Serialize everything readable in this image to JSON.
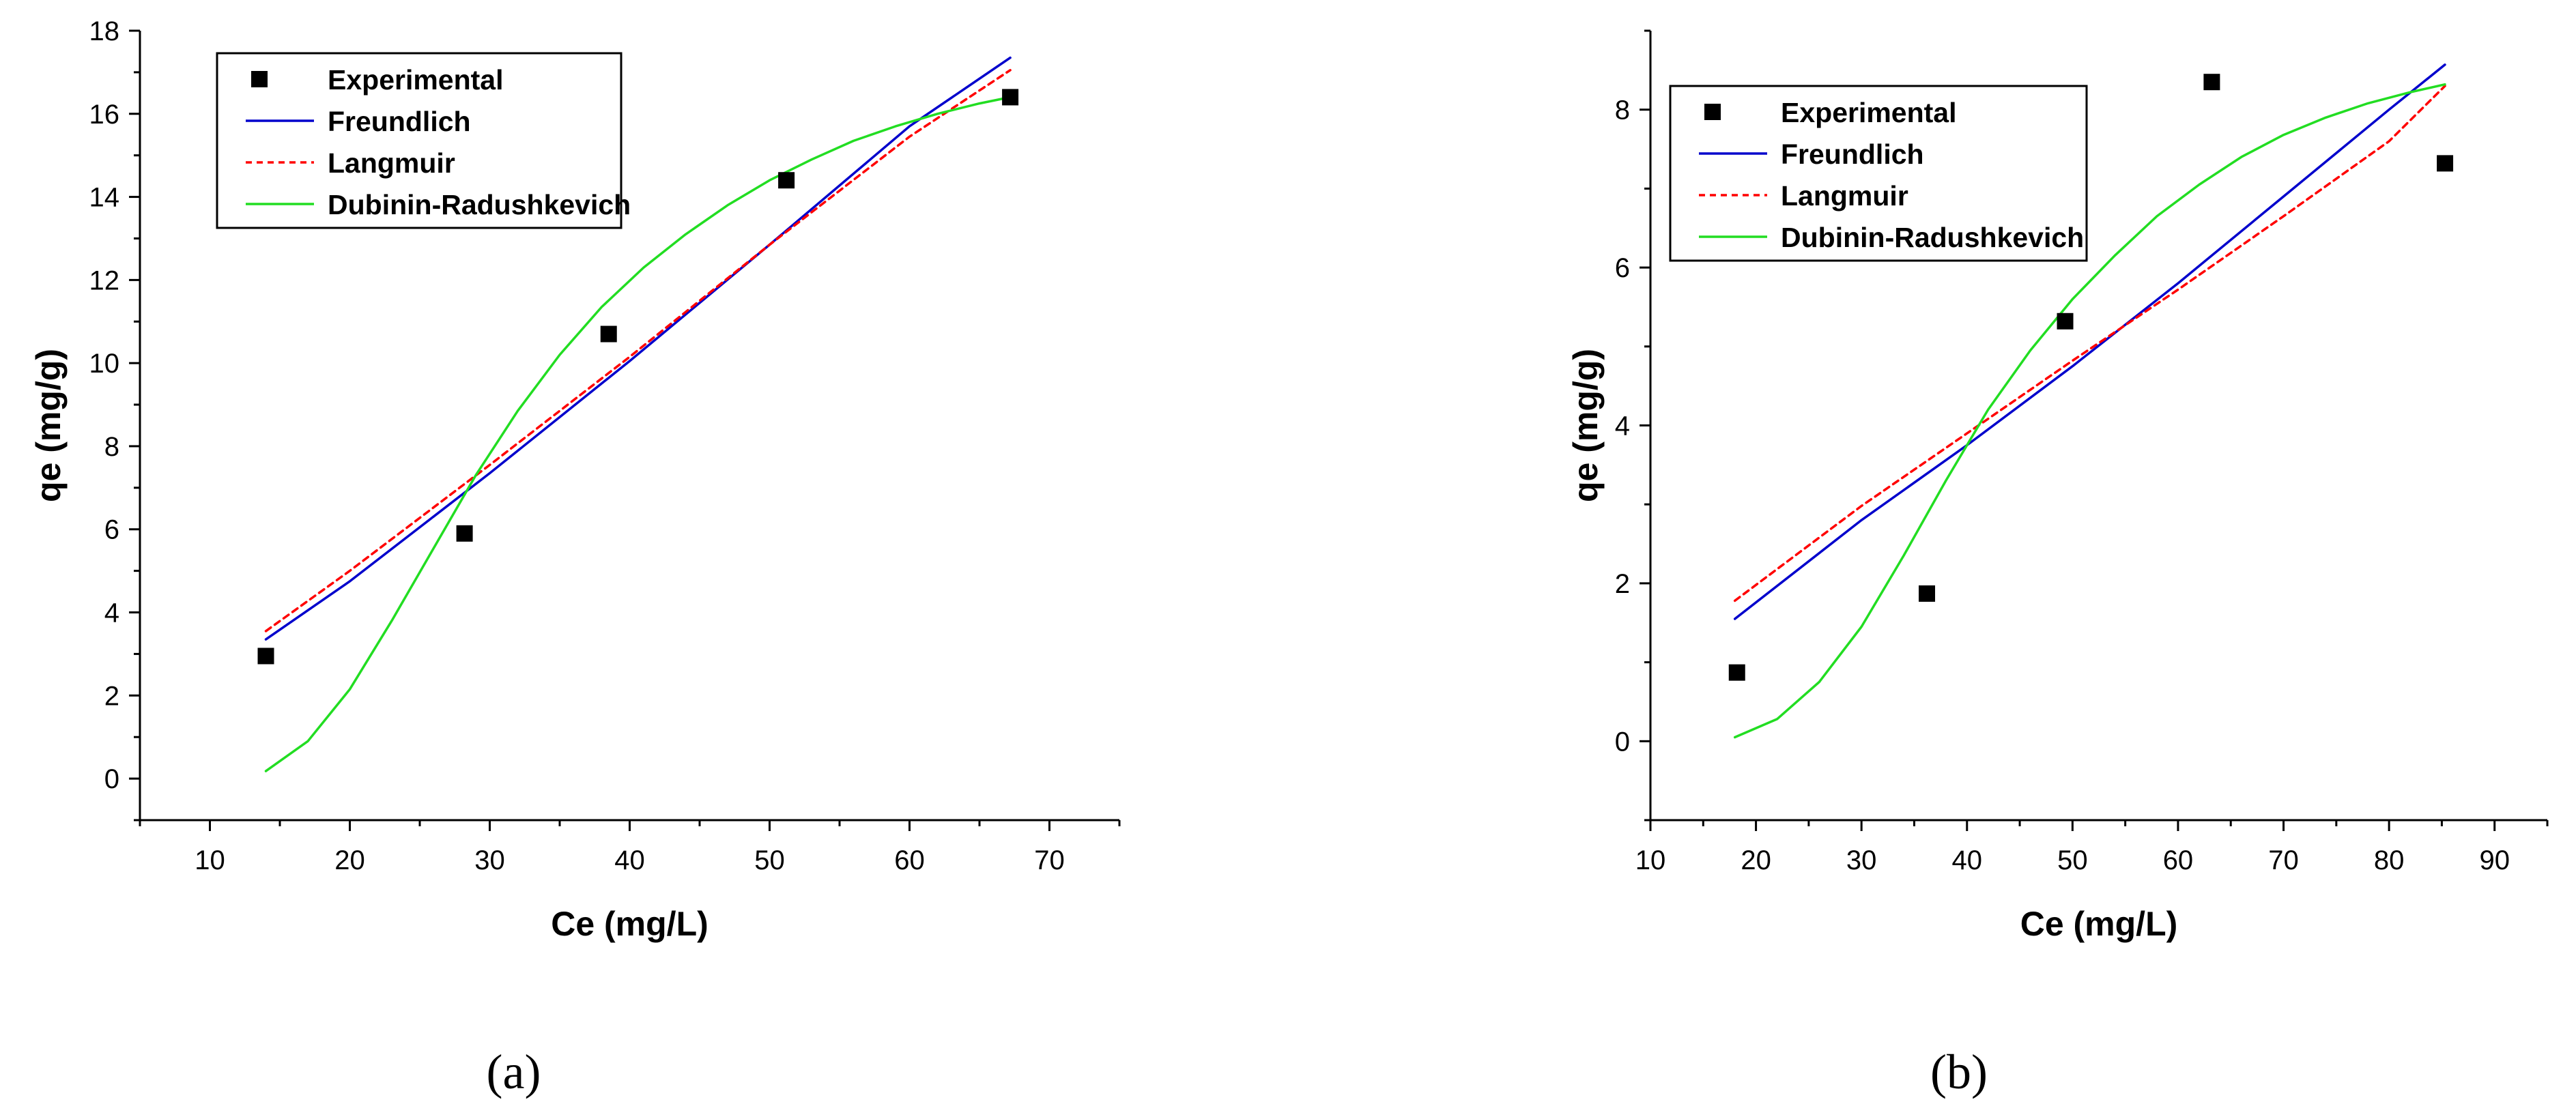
{
  "chart_data": [
    {
      "type": "scatter",
      "panel_label": "(a)",
      "xlabel": "Ce (mg/L)",
      "ylabel": "qe (mg/g)",
      "xlim": [
        5,
        75
      ],
      "ylim": [
        -1,
        18
      ],
      "xticks": [
        "10",
        "20",
        "30",
        "40",
        "50",
        "60",
        "70"
      ],
      "yticks": [
        "0",
        "2",
        "4",
        "6",
        "8",
        "10",
        "12",
        "14",
        "16",
        "18"
      ],
      "legend_position": "top-left",
      "series": [
        {
          "name": "Experimental",
          "kind": "points",
          "color": "#000000",
          "x": [
            14.0,
            28.2,
            38.5,
            51.2,
            67.2
          ],
          "y": [
            2.95,
            5.9,
            10.7,
            14.4,
            16.4
          ]
        },
        {
          "name": "Freundlich",
          "kind": "line",
          "style": "solid",
          "color": "#0000cc",
          "x": [
            14,
            20,
            30,
            40,
            50,
            60,
            67.2
          ],
          "y": [
            3.35,
            4.75,
            7.35,
            10.05,
            12.85,
            15.7,
            17.35
          ]
        },
        {
          "name": "Langmuir",
          "kind": "line",
          "style": "dashed",
          "color": "#ff0000",
          "x": [
            14,
            20,
            30,
            40,
            50,
            60,
            67.2
          ],
          "y": [
            3.55,
            5.0,
            7.55,
            10.15,
            12.85,
            15.45,
            17.05
          ]
        },
        {
          "name": "Dubinin-Radushkevich",
          "kind": "line",
          "style": "solid",
          "color": "#22dd22",
          "x": [
            14,
            17,
            20,
            23,
            26,
            29,
            32,
            35,
            38,
            41,
            44,
            47,
            50,
            53,
            56,
            59,
            62,
            65,
            67.2
          ],
          "y": [
            0.18,
            0.9,
            2.15,
            3.8,
            5.55,
            7.3,
            8.85,
            10.2,
            11.35,
            12.3,
            13.1,
            13.8,
            14.4,
            14.9,
            15.35,
            15.7,
            16.0,
            16.25,
            16.4
          ]
        }
      ]
    },
    {
      "type": "scatter",
      "panel_label": "(b)",
      "xlabel": "Ce (mg/L)",
      "ylabel": "qe (mg/g)",
      "xlim": [
        10,
        95
      ],
      "ylim": [
        -1,
        9
      ],
      "xticks": [
        "10",
        "20",
        "30",
        "40",
        "50",
        "60",
        "70",
        "80",
        "90"
      ],
      "yticks": [
        "0",
        "2",
        "4",
        "6",
        "8"
      ],
      "legend_position": "top-left",
      "series": [
        {
          "name": "Experimental",
          "kind": "points",
          "color": "#000000",
          "x": [
            18.2,
            36.2,
            49.3,
            63.2,
            85.3
          ],
          "y": [
            0.87,
            1.87,
            5.32,
            8.35,
            7.32
          ]
        },
        {
          "name": "Freundlich",
          "kind": "line",
          "style": "solid",
          "color": "#0000cc",
          "x": [
            18,
            30,
            40,
            50,
            60,
            70,
            80,
            85.3
          ],
          "y": [
            1.55,
            2.8,
            3.75,
            4.75,
            5.8,
            6.9,
            8.0,
            8.57
          ]
        },
        {
          "name": "Langmuir",
          "kind": "line",
          "style": "dashed",
          "color": "#ff0000",
          "x": [
            18,
            30,
            40,
            50,
            60,
            70,
            80,
            85.3
          ],
          "y": [
            1.78,
            2.98,
            3.9,
            4.82,
            5.72,
            6.65,
            7.6,
            8.3
          ]
        },
        {
          "name": "Dubinin-Radushkevich",
          "kind": "line",
          "style": "solid",
          "color": "#22dd22",
          "x": [
            18,
            22,
            26,
            30,
            34,
            38,
            42,
            46,
            50,
            54,
            58,
            62,
            66,
            70,
            74,
            78,
            82,
            85.3
          ],
          "y": [
            0.05,
            0.28,
            0.75,
            1.45,
            2.35,
            3.3,
            4.2,
            4.95,
            5.6,
            6.15,
            6.65,
            7.05,
            7.4,
            7.68,
            7.9,
            8.08,
            8.22,
            8.32
          ]
        }
      ]
    }
  ]
}
